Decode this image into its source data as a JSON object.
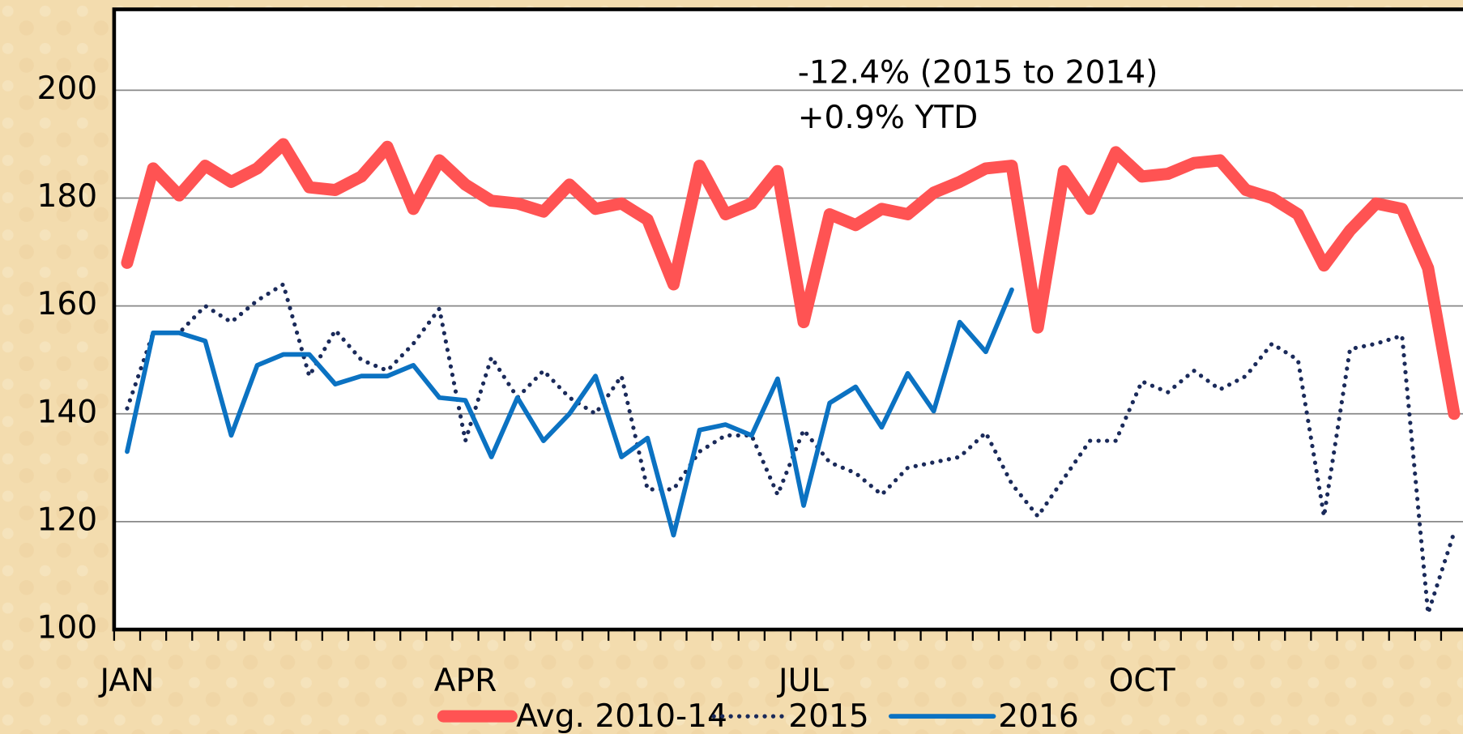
{
  "chart_data": {
    "type": "line",
    "annotations": [
      "-12.4% (2015 to 2014)",
      "+0.9% YTD"
    ],
    "categories": [
      "JAN",
      null,
      null,
      null,
      null,
      null,
      null,
      null,
      null,
      null,
      null,
      null,
      null,
      "APR",
      null,
      null,
      null,
      null,
      null,
      null,
      null,
      null,
      null,
      null,
      null,
      null,
      "JUL",
      null,
      null,
      null,
      null,
      null,
      null,
      null,
      null,
      null,
      null,
      null,
      null,
      "OCT",
      null,
      null,
      null,
      null,
      null,
      null,
      null,
      null,
      null,
      null,
      null,
      null
    ],
    "series": [
      {
        "name": "Avg. 2010-14",
        "color": "#ff5353",
        "style": "solid",
        "values": [
          168,
          185.5,
          180.5,
          186,
          183,
          185.5,
          190,
          182,
          181.5,
          184,
          189.5,
          178,
          187,
          182.5,
          179.5,
          179,
          177.5,
          182.5,
          178,
          179,
          176,
          164,
          186,
          177,
          179,
          185,
          157,
          177,
          175,
          178,
          177,
          181,
          183,
          185.5,
          186,
          156,
          185,
          178,
          188.5,
          184,
          184.5,
          186.5,
          187,
          181.5,
          180,
          177,
          167.5,
          174,
          179,
          178,
          167,
          140
        ]
      },
      {
        "name": "2015",
        "color": "#1a2a5a",
        "style": "dotted",
        "values": [
          141,
          155,
          155,
          160,
          157,
          161,
          164,
          147,
          155.5,
          150,
          148,
          153,
          159.5,
          135,
          150.5,
          143,
          148,
          143,
          140,
          147,
          126,
          126,
          133,
          136,
          136,
          125,
          137,
          131,
          129,
          125,
          130,
          131,
          132,
          136.5,
          127,
          121,
          128,
          135,
          135,
          146,
          144,
          148,
          144.5,
          147,
          153,
          150,
          121,
          152,
          153,
          154.5,
          103,
          118
        ]
      },
      {
        "name": "2016",
        "color": "#0b72c2",
        "style": "solid",
        "values": [
          133,
          155,
          155,
          153.5,
          136,
          149,
          151,
          151,
          145.5,
          147,
          147,
          149,
          143,
          142.5,
          132,
          143,
          135,
          140,
          147,
          132,
          135.5,
          117.5,
          137,
          138,
          136,
          146.5,
          123,
          142,
          145,
          137.5,
          147.5,
          140.5,
          157,
          151.5,
          163,
          null,
          null,
          null,
          null,
          null,
          null,
          null,
          null,
          null,
          null,
          null,
          null,
          null,
          null,
          null,
          null,
          null
        ]
      }
    ],
    "ylim": [
      100,
      215
    ],
    "yticks": [
      100,
      120,
      140,
      160,
      180,
      200
    ],
    "grid": true,
    "legend": "bottom"
  }
}
